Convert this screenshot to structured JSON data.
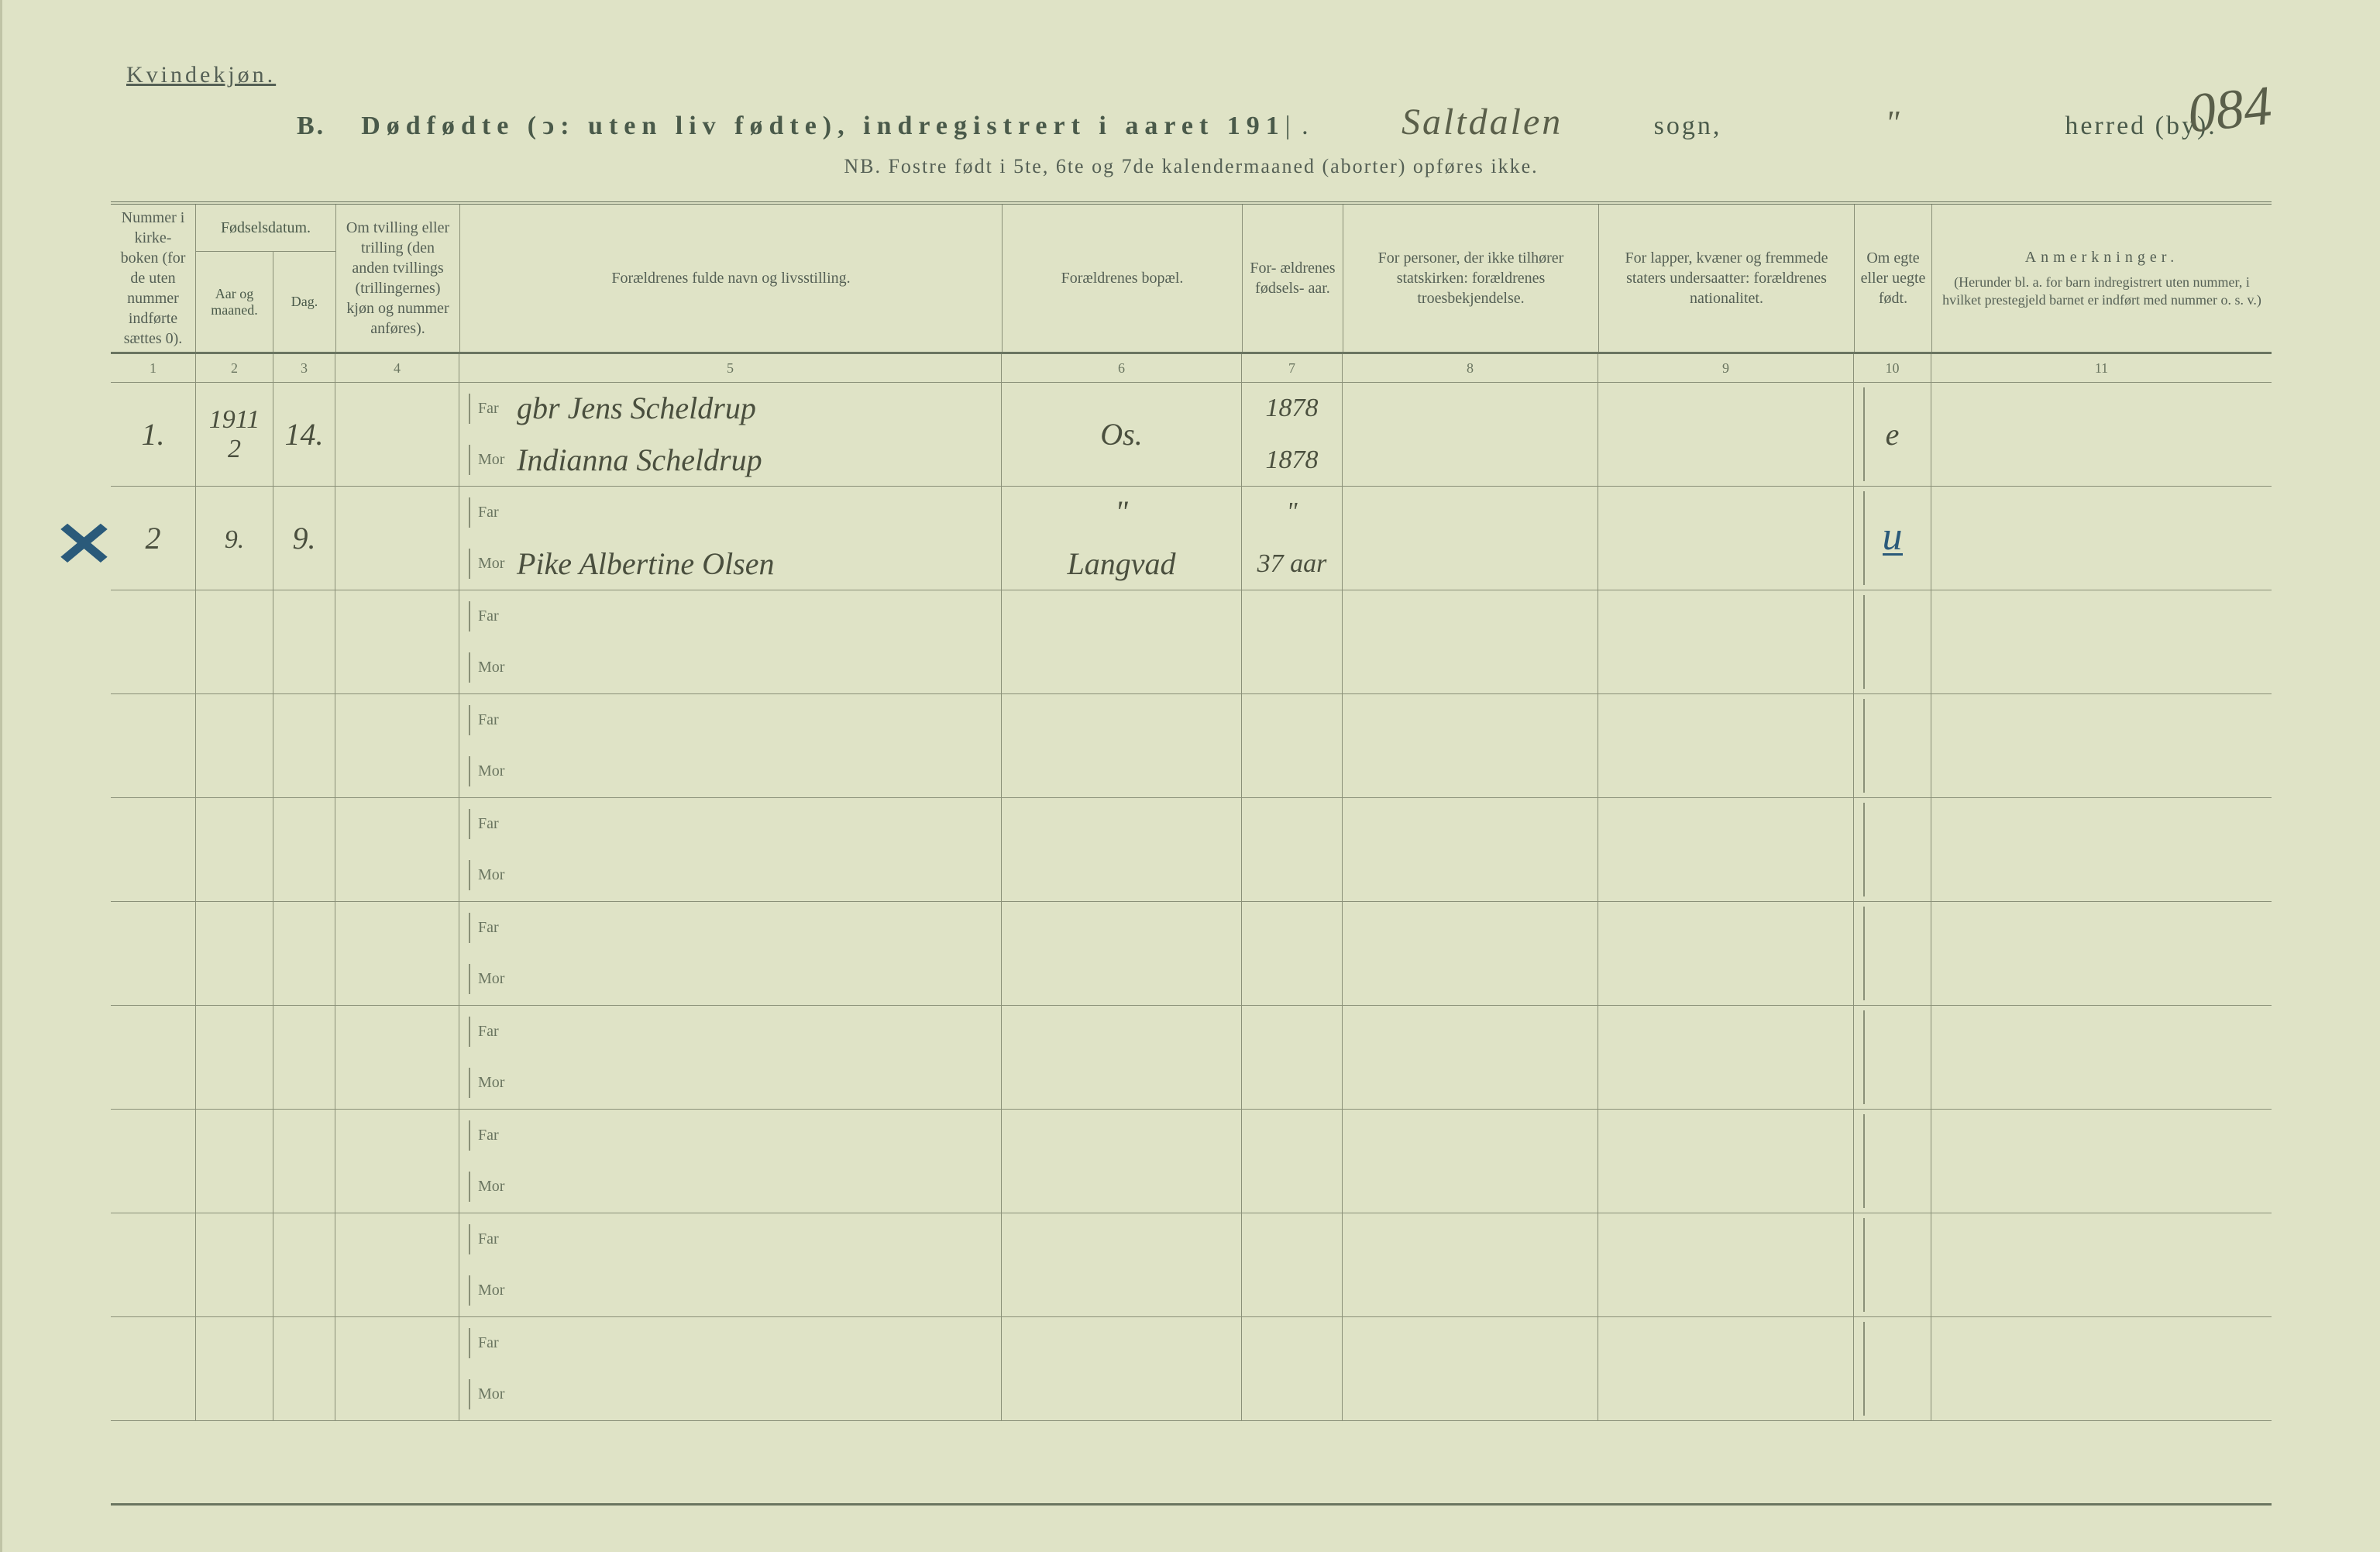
{
  "header": {
    "gender_label": "Kvindekjøn.",
    "title_prefix": "B.",
    "title_main": "Dødfødte (ↄ: uten liv fødte), indregistrert i aaret 191",
    "year_suffix": "|",
    "title_dot": ".",
    "parish_handwritten": "Saltdalen",
    "sogn_label": "sogn,",
    "district_handwritten": "\"",
    "herred_label": "herred (by).",
    "page_number_script": "084",
    "nb_line": "NB.  Fostre født i 5te, 6te og 7de kalendermaaned (aborter) opføres ikke."
  },
  "columns": {
    "c1": "Nummer i kirke- boken (for de uten nummer indførte sættes 0).",
    "c23_top": "Fødselsdatum.",
    "c2": "Aar og maaned.",
    "c3": "Dag.",
    "c4": "Om tvilling eller trilling (den anden tvillings (trillingernes) kjøn og nummer anføres).",
    "c5": "Forældrenes fulde navn og livsstilling.",
    "c6": "Forældrenes bopæl.",
    "c7": "For- ældrenes fødsels- aar.",
    "c8": "For personer, der ikke tilhører statskirken: forældrenes troesbekjendelse.",
    "c9": "For lapper, kvæner og fremmede staters undersaatter: forældrenes nationalitet.",
    "c10": "Om egte eller uegte født.",
    "c11_a": "Anmerkninger.",
    "c11_b": "(Herunder bl. a. for barn indregistrert uten nummer, i hvilket prestegjeld barnet er indført med nummer o. s. v.)"
  },
  "colnums": [
    "1",
    "2",
    "3",
    "4",
    "5",
    "6",
    "7",
    "8",
    "9",
    "10",
    "11"
  ],
  "farmor": {
    "far": "Far",
    "mor": "Mor"
  },
  "rows": [
    {
      "num": "1.",
      "year_month_top": "1911",
      "year_month_bot": "2",
      "day": "14.",
      "far_name": "gbr Jens Scheldrup",
      "mor_name": "Indianna Scheldrup",
      "bopael": "Os.",
      "far_year": "1878",
      "mor_year": "1878",
      "egte": "e",
      "x_mark": false,
      "u_mark": false
    },
    {
      "num": "2",
      "year_month_top": "",
      "year_month_bot": "9.",
      "day": "9.",
      "far_name": "",
      "mor_name": "Pike Albertine Olsen",
      "bopael_far": "\"",
      "bopael": "Langvad",
      "far_year": "\"",
      "mor_year": "37 aar",
      "egte": "",
      "x_mark": true,
      "u_mark": true
    },
    {},
    {},
    {},
    {},
    {},
    {},
    {},
    {}
  ]
}
